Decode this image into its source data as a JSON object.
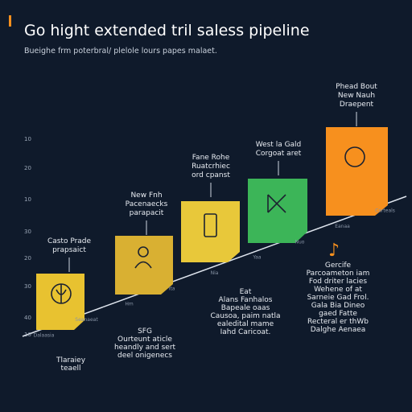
{
  "header": {
    "title": "Go hight extended tril saless pipeline",
    "subtitle": "Bueighe frm poterbral/ plelole lours papes malaet."
  },
  "axis_labels": [
    "10",
    "20",
    "10",
    "30",
    "20",
    "30",
    "40",
    "10"
  ],
  "line_labels": [
    "Dalaasia",
    "Seanaeat",
    "Hm",
    "Ita",
    "Nia",
    "Yaa",
    "Nuo",
    "Eanaa",
    "Carteals"
  ],
  "stages": [
    {
      "above": [
        "Casto Prade",
        "prapsaict"
      ],
      "below": [
        "Tlaraiey",
        "teaell"
      ]
    },
    {
      "above": [
        "New Fnh",
        "Pacenaecks",
        "parapacit"
      ],
      "below": [
        "SFG",
        "Ourteunt aticle",
        "heandly and sert",
        "deel onigenecs"
      ]
    },
    {
      "above": [
        "Fane Rohe",
        "Ruatcrhiec",
        "ord cpanst"
      ],
      "below": [
        "Eat",
        "Alans Fanhalos",
        "Bapeale oaas",
        "Causoa, paim natla",
        "ealedital mame",
        "Iahd Caricoat."
      ]
    },
    {
      "above": [
        "West la Gald",
        "Corgoat aret"
      ],
      "below": []
    },
    {
      "above": [
        "Phead Bout",
        "New Nauh",
        "Draepent"
      ],
      "below": [
        "Gercife",
        "Parcoameton iam",
        "Fod driter lacies",
        "Wehene of at",
        "Sarneie Gad Frol.",
        "Gala Bia Dineo",
        "gaed Fatte",
        "Recteral er thWb",
        "Dalghe Aenaea"
      ]
    }
  ]
}
